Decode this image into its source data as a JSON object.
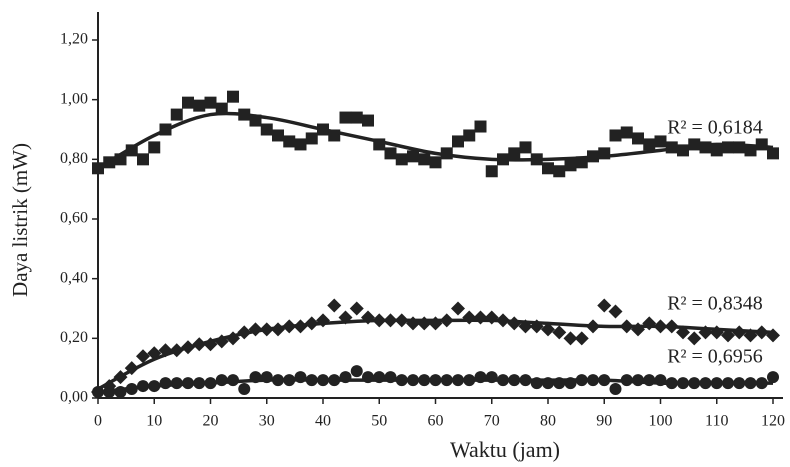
{
  "chart_data": {
    "type": "scatter",
    "x_label": "Waktu (jam)",
    "y_label": "Daya listrik (mW)",
    "x": [
      0,
      2,
      4,
      6,
      8,
      10,
      12,
      14,
      16,
      18,
      20,
      22,
      24,
      26,
      28,
      30,
      32,
      34,
      36,
      38,
      40,
      42,
      44,
      46,
      48,
      50,
      52,
      54,
      56,
      58,
      60,
      62,
      64,
      66,
      68,
      70,
      72,
      74,
      76,
      78,
      80,
      82,
      84,
      86,
      88,
      90,
      92,
      94,
      96,
      98,
      100,
      102,
      104,
      106,
      108,
      110,
      112,
      114,
      116,
      118,
      120
    ],
    "trend_x": [
      0,
      10,
      20,
      30,
      40,
      50,
      60,
      70,
      80,
      90,
      100,
      110,
      120
    ],
    "series": [
      {
        "color": "#222222",
        "marker": "square",
        "annotation": "R² = 0,6184",
        "values": [
          0.77,
          0.79,
          0.8,
          0.83,
          0.8,
          0.84,
          0.9,
          0.95,
          0.99,
          0.98,
          0.99,
          0.97,
          1.01,
          0.95,
          0.93,
          0.9,
          0.88,
          0.86,
          0.85,
          0.87,
          0.9,
          0.88,
          0.94,
          0.94,
          0.93,
          0.85,
          0.82,
          0.8,
          0.81,
          0.8,
          0.79,
          0.82,
          0.86,
          0.88,
          0.91,
          0.76,
          0.8,
          0.82,
          0.84,
          0.8,
          0.77,
          0.76,
          0.78,
          0.79,
          0.81,
          0.82,
          0.88,
          0.89,
          0.87,
          0.85,
          0.86,
          0.84,
          0.83,
          0.85,
          0.84,
          0.83,
          0.84,
          0.84,
          0.83,
          0.85,
          0.82
        ],
        "trend": [
          0.77,
          0.88,
          0.95,
          0.94,
          0.9,
          0.86,
          0.82,
          0.8,
          0.8,
          0.81,
          0.83,
          0.85,
          0.84
        ]
      },
      {
        "color": "#222222",
        "marker": "diamond",
        "annotation": "R² = 0,8348",
        "values": [
          0.02,
          0.04,
          0.07,
          0.1,
          0.14,
          0.15,
          0.16,
          0.16,
          0.17,
          0.18,
          0.18,
          0.19,
          0.2,
          0.22,
          0.23,
          0.23,
          0.23,
          0.24,
          0.24,
          0.25,
          0.26,
          0.31,
          0.27,
          0.3,
          0.27,
          0.26,
          0.26,
          0.26,
          0.25,
          0.25,
          0.25,
          0.26,
          0.3,
          0.27,
          0.27,
          0.27,
          0.26,
          0.25,
          0.24,
          0.24,
          0.23,
          0.22,
          0.2,
          0.2,
          0.24,
          0.31,
          0.29,
          0.24,
          0.23,
          0.25,
          0.24,
          0.24,
          0.22,
          0.2,
          0.22,
          0.22,
          0.21,
          0.22,
          0.21,
          0.22,
          0.21
        ],
        "trend": [
          0.03,
          0.13,
          0.19,
          0.23,
          0.25,
          0.26,
          0.26,
          0.26,
          0.25,
          0.24,
          0.24,
          0.23,
          0.22
        ]
      },
      {
        "color": "#222222",
        "marker": "circle",
        "annotation": "R² = 0,6956",
        "values": [
          0.02,
          0.02,
          0.02,
          0.03,
          0.04,
          0.04,
          0.05,
          0.05,
          0.05,
          0.05,
          0.05,
          0.06,
          0.06,
          0.03,
          0.07,
          0.07,
          0.06,
          0.06,
          0.07,
          0.06,
          0.06,
          0.06,
          0.07,
          0.09,
          0.07,
          0.07,
          0.07,
          0.06,
          0.06,
          0.06,
          0.06,
          0.06,
          0.06,
          0.06,
          0.07,
          0.07,
          0.06,
          0.06,
          0.06,
          0.05,
          0.05,
          0.05,
          0.05,
          0.06,
          0.06,
          0.06,
          0.03,
          0.06,
          0.06,
          0.06,
          0.06,
          0.05,
          0.05,
          0.05,
          0.05,
          0.05,
          0.05,
          0.05,
          0.05,
          0.05,
          0.07
        ],
        "trend": [
          0.02,
          0.04,
          0.05,
          0.06,
          0.06,
          0.06,
          0.06,
          0.06,
          0.06,
          0.06,
          0.05,
          0.05,
          0.05
        ]
      }
    ],
    "xlim": [
      0,
      120
    ],
    "ylim": [
      0,
      1.2
    ],
    "xticks": [
      0,
      10,
      20,
      30,
      40,
      50,
      60,
      70,
      80,
      90,
      100,
      110,
      120
    ],
    "yticks": [
      {
        "value": 0,
        "label": "0,00"
      },
      {
        "value": 0.2,
        "label": "0,20"
      },
      {
        "value": 0.4,
        "label": "0,40"
      },
      {
        "value": 0.6,
        "label": "0,60"
      },
      {
        "value": 0.8,
        "label": "0,80"
      },
      {
        "value": 1.0,
        "label": "1,00"
      },
      {
        "value": 1.2,
        "label": "1,20"
      }
    ],
    "grid": false
  }
}
